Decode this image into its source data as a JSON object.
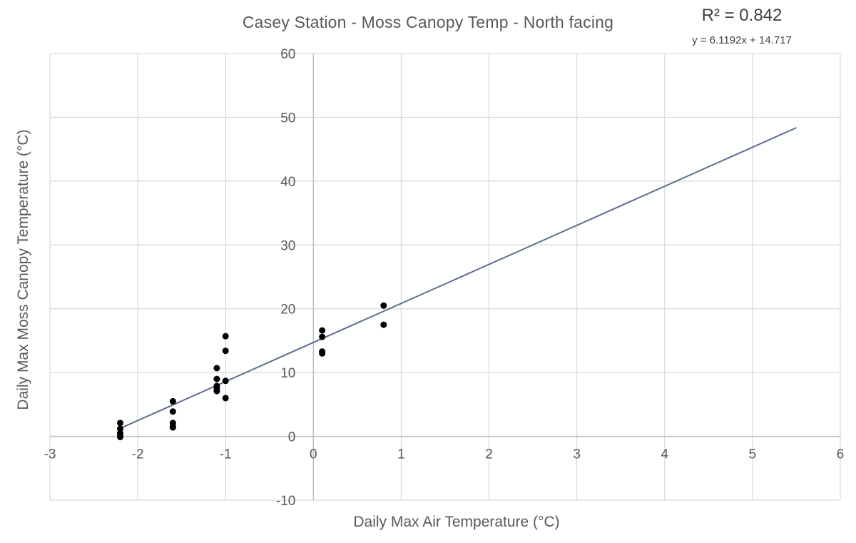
{
  "chart_data": {
    "type": "scatter",
    "title": "Casey Station - Moss Canopy Temp - North facing",
    "xlabel": "Daily Max Air Temperature (°C)",
    "ylabel": "Daily Max Moss Canopy Temperature (°C)",
    "xlim": [
      -3,
      6
    ],
    "ylim": [
      -10,
      60
    ],
    "x_ticks": [
      -3,
      -2,
      -1,
      0,
      1,
      2,
      3,
      4,
      5,
      6
    ],
    "y_ticks": [
      -10,
      0,
      10,
      20,
      30,
      40,
      50,
      60
    ],
    "grid": true,
    "point_color": "#000000",
    "series": [
      {
        "x": [
          -2.2,
          -2.2,
          -2.2,
          -2.2,
          -2.2,
          -1.6,
          -1.6,
          -1.6,
          -1.6,
          -1.6,
          -1.1,
          -1.1,
          -1.1,
          -1.1,
          -1.1,
          -1.0,
          -1.0,
          -1.0,
          -1.0,
          0.1,
          0.1,
          0.1,
          0.1,
          0.8,
          0.8
        ],
        "y": [
          2.1,
          1.2,
          0.5,
          0.1,
          -0.1,
          5.5,
          3.9,
          2.1,
          1.6,
          1.4,
          10.7,
          9.0,
          7.9,
          7.6,
          7.1,
          15.7,
          13.4,
          8.7,
          6.0,
          16.6,
          15.6,
          13.3,
          13.0,
          20.5,
          17.5
        ]
      }
    ],
    "trendline": {
      "type": "linear",
      "slope": 6.1192,
      "intercept": 14.717,
      "x_range": [
        -2.2,
        5.5
      ],
      "color": "#5b6f8f",
      "equation_label": "y = 6.1192x + 14.717",
      "r2_label": "R² = 0.842"
    }
  }
}
